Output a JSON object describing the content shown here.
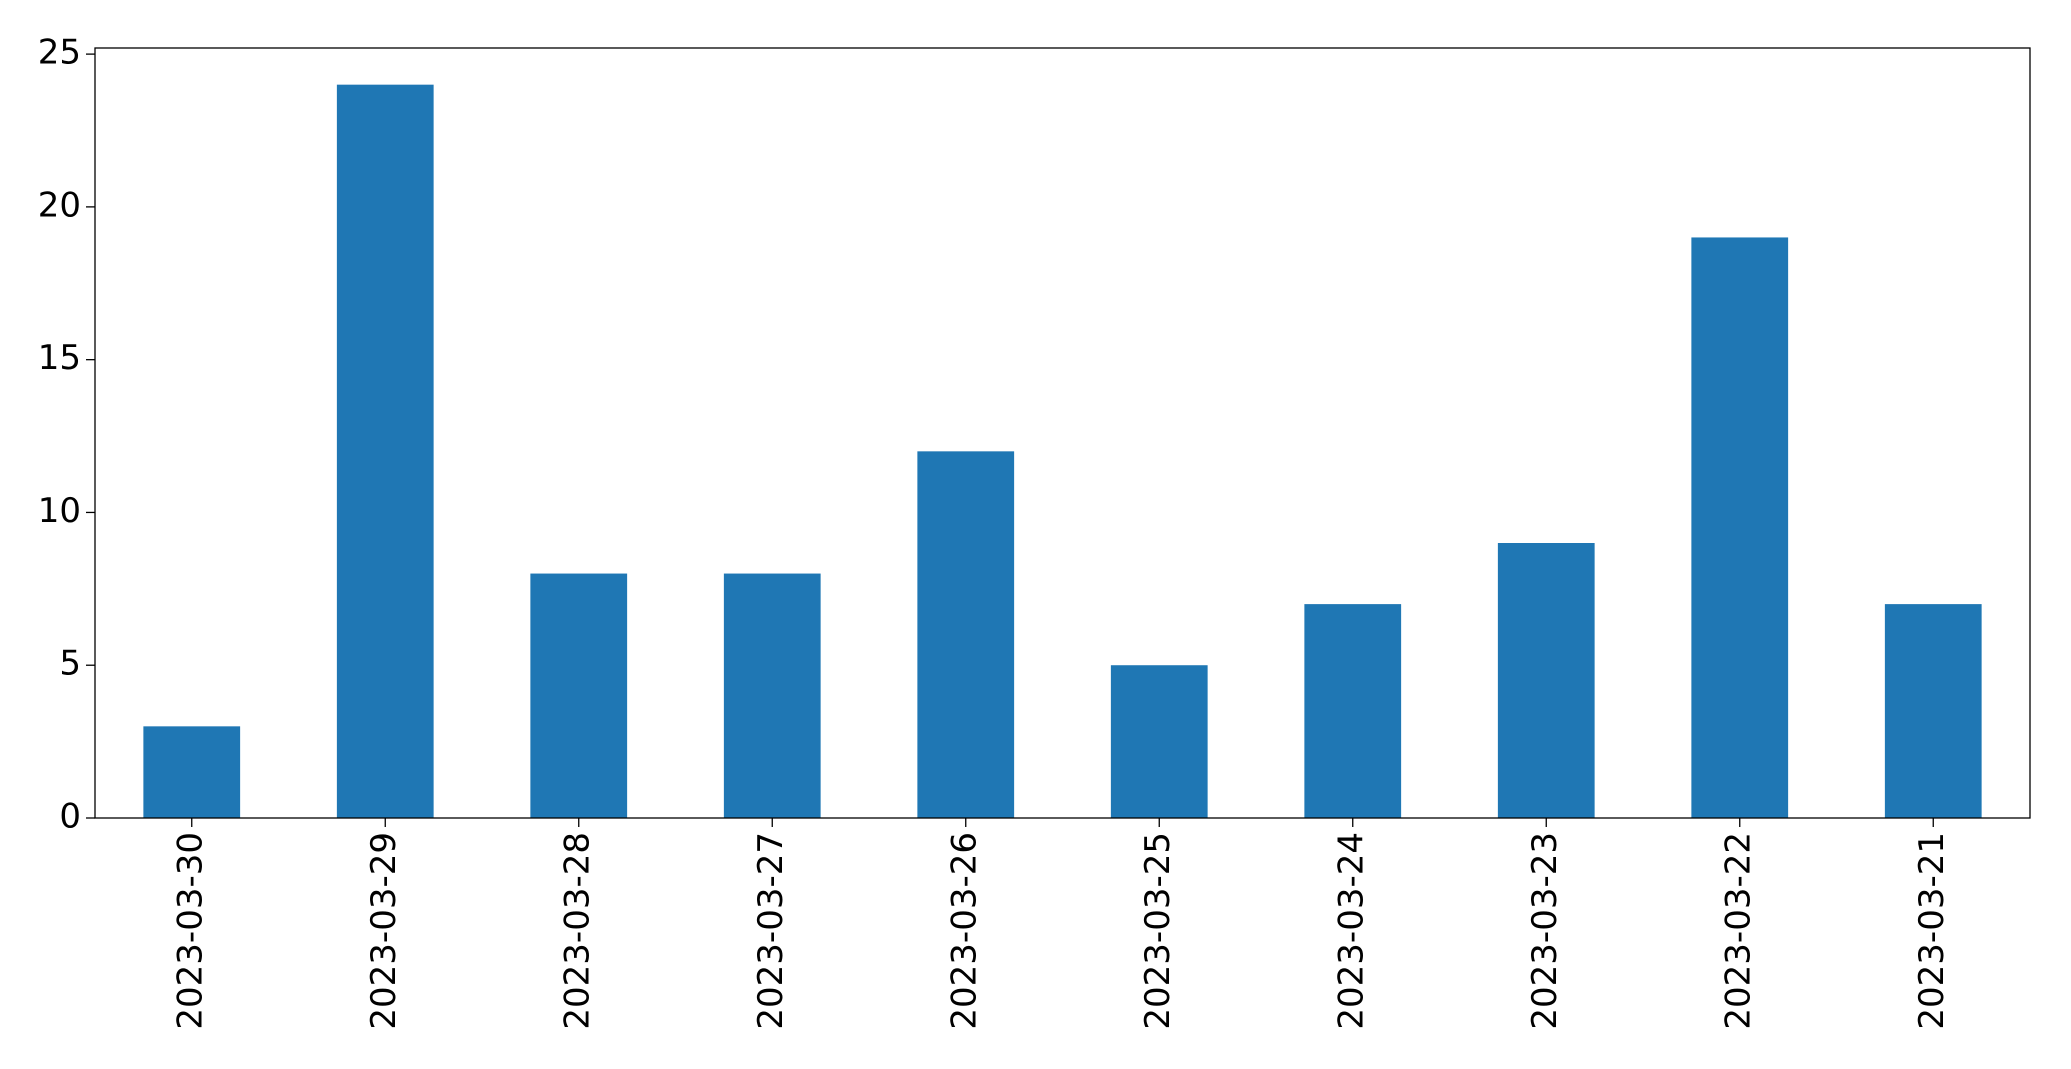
{
  "chart_data": {
    "type": "bar",
    "categories": [
      "2023-03-30",
      "2023-03-29",
      "2023-03-28",
      "2023-03-27",
      "2023-03-26",
      "2023-03-25",
      "2023-03-24",
      "2023-03-23",
      "2023-03-22",
      "2023-03-21"
    ],
    "values": [
      3,
      24,
      8,
      8,
      12,
      5,
      7,
      9,
      19,
      7
    ],
    "color": "#1f77b4",
    "ylim": [
      0,
      25.2
    ],
    "yticks": [
      0,
      5,
      10,
      15,
      20,
      25
    ],
    "grid": false
  }
}
